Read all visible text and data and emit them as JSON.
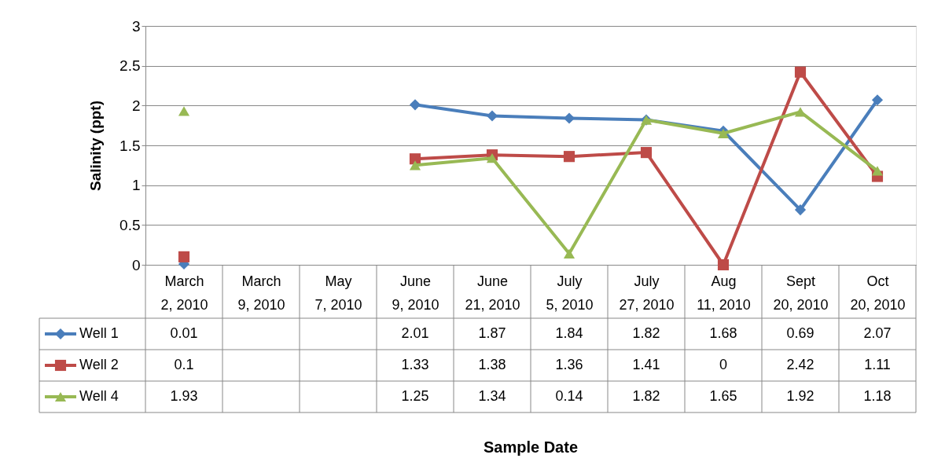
{
  "chart_data": {
    "type": "line",
    "annotations": [
      "Sample Date"
    ],
    "ylabel": "Salinity (ppt)",
    "categories": [
      "March 2, 2010",
      "March 9, 2010",
      "May 7, 2010",
      "June 9, 2010",
      "June 21, 2010",
      "July 5, 2010",
      "July 27, 2010",
      "Aug 11, 2010",
      "Sept 20, 2010",
      "Oct 20, 2010"
    ],
    "series": [
      {
        "name": "Well 1",
        "color": "#4a7ebb",
        "marker": "diamond",
        "values": [
          0.01,
          null,
          null,
          2.01,
          1.87,
          1.84,
          1.82,
          1.68,
          0.69,
          2.07
        ]
      },
      {
        "name": "Well 2",
        "color": "#be4b48",
        "marker": "square",
        "values": [
          0.1,
          null,
          null,
          1.33,
          1.38,
          1.36,
          1.41,
          0,
          2.42,
          1.11
        ]
      },
      {
        "name": "Well 4",
        "color": "#98b954",
        "marker": "triangle",
        "values": [
          1.93,
          null,
          null,
          1.25,
          1.34,
          0.14,
          1.82,
          1.65,
          1.92,
          1.18
        ]
      }
    ],
    "ylim": [
      0,
      3
    ],
    "yticks": [
      0,
      0.5,
      1,
      1.5,
      2,
      2.5,
      3
    ],
    "grid": "y",
    "legend": "bottom left",
    "data_labels": true,
    "line_style": "solid"
  }
}
